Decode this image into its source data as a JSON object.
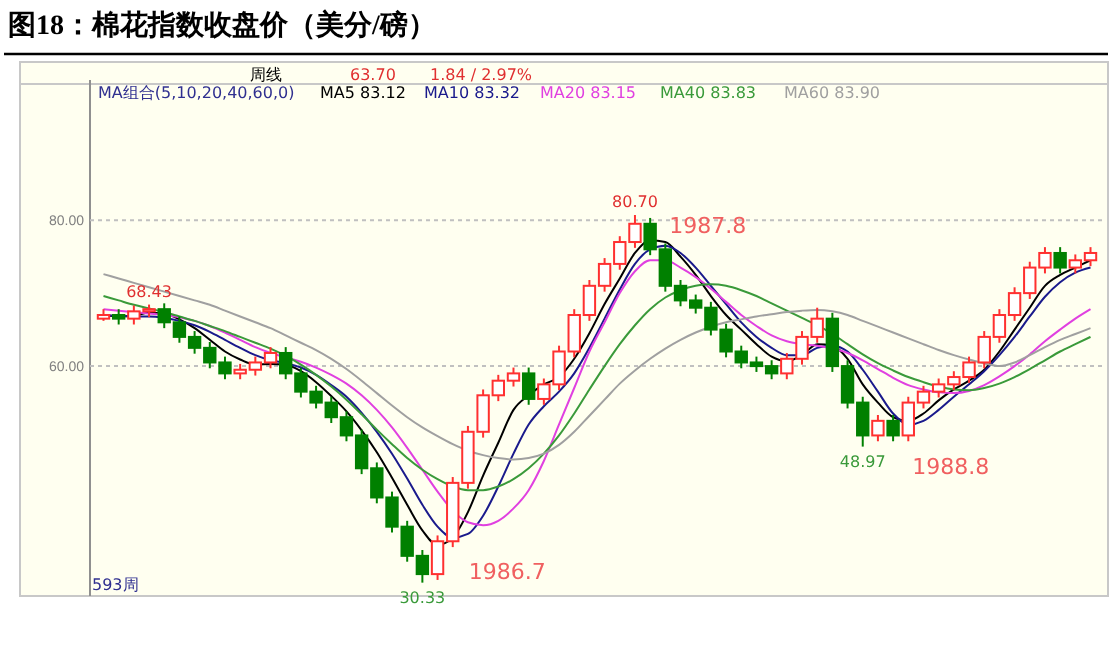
{
  "chart_data": {
    "type": "candlestick",
    "title": "图18：棉花指数收盘价（美分/磅）",
    "categories": [
      null,
      null,
      null,
      null,
      null,
      null,
      null,
      null,
      null,
      null,
      null,
      null,
      null,
      null,
      null,
      null,
      null,
      null,
      null,
      null,
      null,
      null,
      null,
      null,
      null,
      null,
      null,
      null,
      null,
      null,
      null,
      null,
      null,
      null,
      null,
      null,
      null,
      null,
      null,
      null,
      null,
      null,
      null,
      null,
      null,
      null,
      null,
      null,
      null,
      null,
      null,
      null,
      null,
      null,
      null,
      null,
      null,
      null,
      null,
      null,
      null,
      null,
      null,
      null,
      null,
      null
    ],
    "ohlc": [
      [
        66.5,
        67.8,
        66.2,
        67
      ],
      [
        67,
        67.8,
        65.7,
        66.5
      ],
      [
        66.5,
        68.3,
        65.7,
        67.5
      ],
      [
        67.5,
        68.43,
        66.7,
        67.8
      ],
      [
        67.8,
        68.6,
        65.2,
        66
      ],
      [
        66,
        66.8,
        63.2,
        64
      ],
      [
        64,
        64.8,
        61.7,
        62.5
      ],
      [
        62.5,
        63.3,
        59.7,
        60.5
      ],
      [
        60.5,
        61.3,
        58.2,
        59
      ],
      [
        59,
        60.3,
        58.2,
        59.5
      ],
      [
        59.5,
        61.3,
        58.7,
        60.5
      ],
      [
        60.5,
        62.6,
        59.7,
        61.8
      ],
      [
        61.8,
        62.6,
        58.2,
        59
      ],
      [
        59,
        59.8,
        55.7,
        56.5
      ],
      [
        56.5,
        57.3,
        54.2,
        55
      ],
      [
        55,
        55.8,
        52.2,
        53
      ],
      [
        53,
        53.8,
        49.7,
        50.5
      ],
      [
        50.5,
        51.3,
        45.2,
        46
      ],
      [
        46,
        46.8,
        41.2,
        42
      ],
      [
        42,
        42.8,
        37.2,
        38
      ],
      [
        38,
        38.8,
        33.2,
        34
      ],
      [
        34,
        34.8,
        30.33,
        31.5
      ],
      [
        31.5,
        36.8,
        30.7,
        36
      ],
      [
        36,
        44.8,
        35.2,
        44
      ],
      [
        44,
        51.8,
        43.2,
        51
      ],
      [
        51,
        56.8,
        50.2,
        56
      ],
      [
        56,
        58.8,
        55.2,
        58
      ],
      [
        58,
        59.8,
        57.2,
        59
      ],
      [
        59,
        59.8,
        54.7,
        55.5
      ],
      [
        55.5,
        58.3,
        54.7,
        57.5
      ],
      [
        57.5,
        62.8,
        56.7,
        62
      ],
      [
        62,
        67.8,
        61.2,
        67
      ],
      [
        67,
        71.8,
        66.2,
        71
      ],
      [
        71,
        74.8,
        70.2,
        74
      ],
      [
        74,
        77.8,
        73.2,
        77
      ],
      [
        77,
        80.7,
        76.2,
        79.5
      ],
      [
        79.5,
        80.3,
        75.2,
        76
      ],
      [
        76,
        76.8,
        70.2,
        71
      ],
      [
        71,
        71.8,
        68.2,
        69
      ],
      [
        69,
        69.8,
        67.2,
        68
      ],
      [
        68,
        68.8,
        64.2,
        65
      ],
      [
        65,
        65.8,
        61.2,
        62
      ],
      [
        62,
        62.8,
        59.7,
        60.5
      ],
      [
        60.5,
        61.3,
        59.2,
        60
      ],
      [
        60,
        60.8,
        58.2,
        59
      ],
      [
        59,
        61.8,
        58.2,
        61
      ],
      [
        61,
        64.8,
        60.2,
        64
      ],
      [
        64,
        68,
        63.2,
        66.5
      ],
      [
        66.5,
        67.3,
        59.2,
        60
      ],
      [
        60,
        60.8,
        54.2,
        55
      ],
      [
        55,
        55.8,
        48.97,
        50.5
      ],
      [
        50.5,
        53.3,
        49.7,
        52.5
      ],
      [
        52.5,
        53.3,
        49.7,
        50.5
      ],
      [
        50.5,
        55.8,
        49.7,
        55
      ],
      [
        55,
        57.3,
        54.2,
        56.5
      ],
      [
        56.5,
        58.3,
        55.7,
        57.5
      ],
      [
        57.5,
        59.3,
        56.7,
        58.5
      ],
      [
        58.5,
        61.3,
        57.7,
        60.5
      ],
      [
        60.5,
        64.8,
        59.7,
        64
      ],
      [
        64,
        67.8,
        63.2,
        67
      ],
      [
        67,
        70.8,
        66.2,
        70
      ],
      [
        70,
        74.3,
        69.2,
        73.5
      ],
      [
        73.5,
        76.3,
        72.7,
        75.5
      ],
      [
        75.5,
        76.3,
        72.7,
        73.5
      ],
      [
        73.5,
        75.3,
        72.7,
        74.5
      ],
      [
        74.5,
        76.3,
        73.7,
        75.5
      ]
    ],
    "series": [
      {
        "name": "MA5 83.12",
        "color": "#000000",
        "type": "line",
        "values": [
          67,
          66.8,
          66.9,
          67.3,
          67.2,
          66.4,
          65.2,
          63.6,
          62,
          60.9,
          60.2,
          60.3,
          60.2,
          59.3,
          57.8,
          55.9,
          53.8,
          51.2,
          48.2,
          44.7,
          41,
          37.5,
          35.5,
          36.5,
          40,
          45,
          49.5,
          54,
          56,
          57.5,
          58.5,
          61,
          64.5,
          68.5,
          72,
          75.5,
          77.2,
          77,
          75,
          72.5,
          69.6,
          67,
          65,
          63,
          61.3,
          60.7,
          61.5,
          63,
          62.8,
          61,
          57.5,
          55,
          53,
          52.5,
          53.5,
          55.3,
          56.8,
          58,
          59.5,
          62,
          65,
          68,
          71,
          72.5,
          73.5,
          74.5
        ]
      },
      {
        "name": "MA10 83.32",
        "color": "#1a1a8c",
        "type": "line",
        "values": [
          67,
          66.9,
          66.8,
          66.8,
          66.6,
          66.2,
          65.6,
          64.7,
          63.6,
          62.5,
          61.5,
          60.8,
          60.4,
          59.8,
          58.8,
          57.4,
          55.8,
          53.6,
          51,
          48,
          44.6,
          41,
          38,
          36.5,
          37,
          39.5,
          43.5,
          48,
          52,
          54.5,
          56.5,
          59,
          62.5,
          66.5,
          70.5,
          74,
          76,
          76.5,
          75.5,
          73.5,
          71,
          68.5,
          66,
          64,
          62.5,
          61.5,
          61.5,
          62.5,
          62.8,
          62,
          59.5,
          56.5,
          53.5,
          52,
          52.5,
          54,
          55.8,
          57.5,
          59.3,
          61.5,
          64,
          66.8,
          69.5,
          71.5,
          72.8,
          73.5
        ]
      },
      {
        "name": "MA20 83.15",
        "color": "#e040e0",
        "type": "line",
        "values": [
          67.8,
          67.6,
          67.4,
          67.2,
          67,
          66.7,
          66.2,
          65.5,
          64.6,
          63.6,
          62.6,
          61.8,
          61.2,
          60.6,
          59.8,
          58.8,
          57.6,
          56,
          54,
          51.6,
          48.8,
          45.8,
          42.8,
          40.2,
          38.6,
          38.2,
          38.8,
          40.5,
          43,
          47,
          52,
          57,
          62,
          66,
          70,
          73,
          74.5,
          74.5,
          73.5,
          72.2,
          70.6,
          68.8,
          67,
          65.5,
          64.2,
          63.4,
          63,
          62.8,
          62.4,
          61.8,
          60.8,
          59.6,
          58.4,
          57.4,
          56.8,
          56.4,
          56.3,
          56.6,
          57.4,
          58.6,
          60,
          61.6,
          63.4,
          65,
          66.5,
          67.8
        ]
      },
      {
        "name": "MA40 83.83",
        "color": "#3a9a3a",
        "type": "line",
        "values": [
          69.6,
          69,
          68.4,
          67.9,
          67.4,
          66.8,
          66.2,
          65.5,
          64.8,
          64,
          63.2,
          62.4,
          61.4,
          60.2,
          58.8,
          57.2,
          55.4,
          53.4,
          51.3,
          49.3,
          47.4,
          45.8,
          44.5,
          43.5,
          43,
          43,
          43.5,
          44.5,
          46,
          48,
          50.5,
          53.5,
          56.8,
          60,
          63,
          65.6,
          67.8,
          69.4,
          70.4,
          71,
          71.2,
          71,
          70.4,
          69.6,
          68.6,
          67.6,
          66.6,
          65.6,
          64.4,
          63,
          61.6,
          60.4,
          59.4,
          58.5,
          57.8,
          57.2,
          56.8,
          56.7,
          57,
          57.6,
          58.5,
          59.6,
          60.8,
          62,
          63,
          64
        ]
      },
      {
        "name": "MA60 83.90",
        "color": "#a0a0a0",
        "type": "line",
        "values": [
          72.6,
          72,
          71.4,
          70.8,
          70.2,
          69.6,
          69,
          68.4,
          67.6,
          66.8,
          66,
          65.2,
          64.2,
          63.2,
          62.2,
          61,
          59.6,
          58,
          56.3,
          54.6,
          53,
          51.6,
          50.4,
          49.3,
          48.4,
          47.8,
          47.4,
          47.2,
          47.4,
          48,
          49.2,
          51,
          53.2,
          55.4,
          57.6,
          59.4,
          61,
          62.4,
          63.6,
          64.6,
          65.4,
          66,
          66.4,
          66.8,
          67.1,
          67.4,
          67.6,
          67.7,
          67.5,
          67,
          66.2,
          65.4,
          64.6,
          63.8,
          63,
          62.2,
          61.5,
          60.9,
          60.4,
          60,
          60.5,
          61.5,
          62.6,
          63.6,
          64.4,
          65.2
        ]
      }
    ],
    "ylim": [
      28.5,
      99.2
    ],
    "yticks": [
      {
        "value": 60,
        "label": "60.00"
      },
      {
        "value": 80,
        "label": "80.00"
      }
    ],
    "grid": "y",
    "legend": "top left",
    "annotations": [
      "周线",
      "63.70",
      "1.84 / 2.97%",
      "MA组合(5,10,20,40,60,0)",
      "593周",
      "1986.7",
      "1987.8",
      "1988.8",
      {
        "text": "68.43",
        "y": 68.43
      },
      {
        "text": "80.70",
        "y": 80.7
      },
      {
        "text": "30.33",
        "y": 30.33
      },
      {
        "text": "48.97",
        "y": 48.97
      }
    ]
  }
}
